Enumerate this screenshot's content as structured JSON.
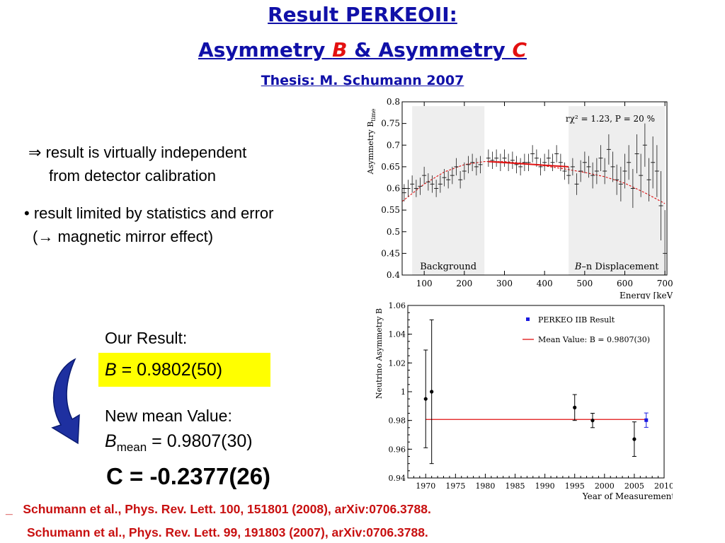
{
  "title": {
    "line1": "Result PERKEOII:",
    "line2_a": "Asymmetry ",
    "line2_b": "B",
    "line2_c": " & Asymmetry ",
    "line2_d": "C",
    "line3": "Thesis: M. Schumann 2007"
  },
  "bullets": {
    "b1_symbol": "⇒",
    "b1_line1": "result is virtually independent",
    "b1_line2": "from detector calibration",
    "b2_line1": "• result limited by statistics and error",
    "b2_line2_pre": "(",
    "b2_line2_arrow": "→",
    "b2_line2_post": " magnetic mirror effect)"
  },
  "result": {
    "label": "Our Result:",
    "b_symbol": "B",
    "b_value": " = 0.9802(50)",
    "box_color": "#ffff00",
    "mean_label": "New mean Value:",
    "mean_symbol": "B",
    "mean_sub": "mean",
    "mean_value": " = 0.9807(30)",
    "c_value": "C = -0.2377(26)"
  },
  "arrow_color": "#1e30a0",
  "citations": {
    "c1_marker": "_",
    "c1": "Schumann et al., Phys. Rev. Lett. 100, 151801 (2008), arXiv:0706.3788.",
    "c2": "Schumann et al., Phys. Rev. Lett. 99, 191803 (2007), arXiv:0706.3788."
  },
  "chart_data": [
    {
      "type": "scatter",
      "ylabel": "Asymmetry B",
      "ylabel_sub": "time",
      "xlabel": "Energy [keV]",
      "xlim": [
        45,
        705
      ],
      "ylim": [
        0.4,
        0.8
      ],
      "xticks": [
        100,
        200,
        300,
        400,
        500,
        600,
        700
      ],
      "yticks": [
        0.4,
        0.45,
        0.5,
        0.55,
        0.6,
        0.65,
        0.7,
        0.75,
        0.8
      ],
      "ytick_labels": [
        "0.4",
        "0.45",
        "0.5",
        "0.55",
        "0.6",
        "0.65",
        "0.7",
        "0.75",
        "0.8"
      ],
      "annotation": "rχ² = 1.23, P = 20 %",
      "shaded_regions": [
        {
          "from": 70,
          "to": 250,
          "label": "Background",
          "label_italic": "",
          "color": "#eeeeee"
        },
        {
          "from": 460,
          "to": 700,
          "label": "–n Displacement",
          "label_italic": "B",
          "color": "#eeeeee"
        }
      ],
      "fit_line": {
        "x": [
          260,
          460
        ],
        "y": [
          0.662,
          0.65
        ],
        "color": "#e01010"
      },
      "fit_curve": {
        "x": [
          45,
          100,
          150,
          200,
          250,
          300,
          350,
          400,
          450,
          500,
          550,
          600,
          650,
          700
        ],
        "y": [
          0.57,
          0.61,
          0.638,
          0.655,
          0.662,
          0.662,
          0.658,
          0.652,
          0.645,
          0.637,
          0.627,
          0.612,
          0.59,
          0.565
        ],
        "color": "#e01010"
      },
      "points": {
        "x": [
          50,
          60,
          70,
          80,
          90,
          100,
          110,
          120,
          130,
          140,
          150,
          160,
          170,
          180,
          190,
          200,
          210,
          220,
          230,
          240,
          260,
          270,
          280,
          290,
          300,
          310,
          320,
          330,
          340,
          350,
          360,
          370,
          380,
          390,
          400,
          410,
          420,
          430,
          440,
          450,
          460,
          470,
          480,
          490,
          500,
          510,
          520,
          530,
          540,
          550,
          560,
          570,
          580,
          590,
          600,
          610,
          620,
          630,
          640,
          650,
          660,
          670,
          680,
          690,
          700
        ],
        "y": [
          0.59,
          0.6,
          0.61,
          0.6,
          0.605,
          0.63,
          0.615,
          0.61,
          0.6,
          0.61,
          0.625,
          0.62,
          0.63,
          0.65,
          0.62,
          0.64,
          0.655,
          0.66,
          0.65,
          0.655,
          0.67,
          0.665,
          0.67,
          0.66,
          0.67,
          0.66,
          0.665,
          0.655,
          0.65,
          0.66,
          0.66,
          0.68,
          0.67,
          0.65,
          0.66,
          0.67,
          0.66,
          0.68,
          0.66,
          0.64,
          0.63,
          0.65,
          0.61,
          0.64,
          0.66,
          0.65,
          0.63,
          0.64,
          0.67,
          0.64,
          0.69,
          0.65,
          0.62,
          0.61,
          0.64,
          0.66,
          0.6,
          0.68,
          0.63,
          0.7,
          0.62,
          0.66,
          0.64,
          0.56,
          0.45
        ],
        "err": [
          0.02,
          0.02,
          0.02,
          0.02,
          0.02,
          0.02,
          0.02,
          0.02,
          0.02,
          0.02,
          0.02,
          0.02,
          0.02,
          0.02,
          0.02,
          0.02,
          0.02,
          0.02,
          0.02,
          0.02,
          0.02,
          0.02,
          0.02,
          0.02,
          0.02,
          0.02,
          0.02,
          0.02,
          0.02,
          0.02,
          0.02,
          0.02,
          0.02,
          0.02,
          0.02,
          0.02,
          0.02,
          0.02,
          0.02,
          0.02,
          0.02,
          0.02,
          0.025,
          0.025,
          0.025,
          0.025,
          0.03,
          0.03,
          0.03,
          0.03,
          0.035,
          0.035,
          0.035,
          0.04,
          0.04,
          0.04,
          0.045,
          0.045,
          0.05,
          0.05,
          0.05,
          0.06,
          0.06,
          0.08,
          0.1
        ]
      }
    },
    {
      "type": "scatter",
      "ylabel": "Neutrino Asymmetry B",
      "xlabel": "Year of Measurement",
      "xlim": [
        1967,
        2010
      ],
      "ylim": [
        0.94,
        1.06
      ],
      "xticks": [
        1970,
        1975,
        1980,
        1985,
        1990,
        1995,
        2000,
        2005,
        2010
      ],
      "yticks": [
        0.94,
        0.96,
        0.98,
        1.0,
        1.02,
        1.04,
        1.06
      ],
      "ytick_labels": [
        "0.94",
        "0.96",
        "0.98",
        "1",
        "1.02",
        "1.04",
        "1.06"
      ],
      "legend": [
        {
          "label": "PERKEO IIB Result",
          "color": "#1a1ae0",
          "kind": "marker"
        },
        {
          "label": "Mean Value: B = 0.9807(30)",
          "color": "#e01010",
          "kind": "line"
        }
      ],
      "mean_line": {
        "y": 0.9807,
        "from": 1970,
        "to": 2007,
        "color": "#e01010"
      },
      "points": {
        "x": [
          1970,
          1971,
          1995,
          1998,
          2005
        ],
        "y": [
          0.995,
          1.0,
          0.989,
          0.98,
          0.967
        ],
        "err": [
          0.034,
          0.05,
          0.009,
          0.005,
          0.012
        ]
      },
      "result_point": {
        "x": 2007,
        "y": 0.9802,
        "err": 0.005,
        "color": "#1a1ae0"
      }
    }
  ]
}
